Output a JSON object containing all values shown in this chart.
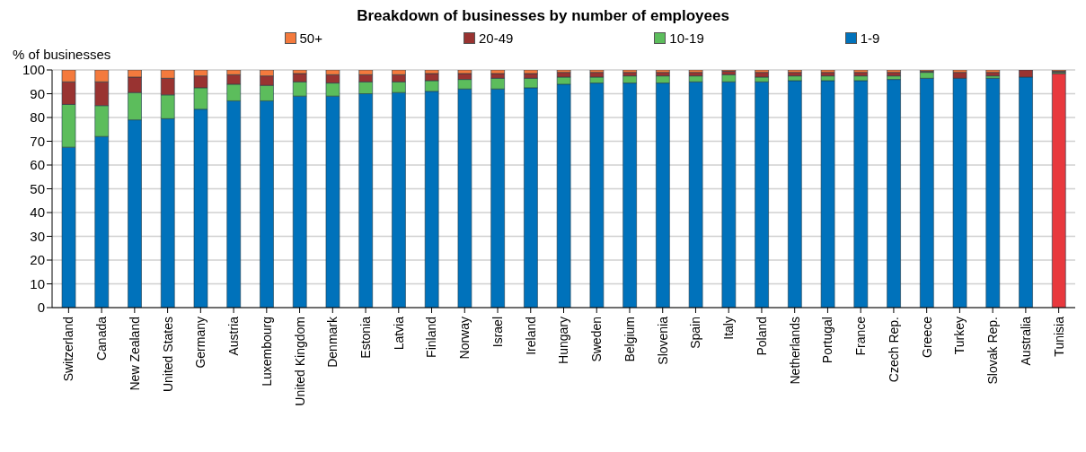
{
  "chart_data": {
    "type": "bar",
    "title": "Breakdown of businesses by number of employees",
    "ylabel": "% of businesses",
    "stacked": true,
    "grid": "y",
    "legend": "top",
    "categories": [
      "Switzerland",
      "Canada",
      "New Zealand",
      "United States",
      "Germany",
      "Austria",
      "Luxembourg",
      "United Kingdom",
      "Denmark",
      "Estonia",
      "Latvia",
      "Finland",
      "Norway",
      "Israel",
      "Ireland",
      "Hungary",
      "Sweden",
      "Belgium",
      "Slovenia",
      "Spain",
      "Italy",
      "Poland",
      "Netherlands",
      "Portugal",
      "France",
      "Czech Rep.",
      "Greece",
      "Turkey",
      "Slovak Rep.",
      "Australia",
      "Tunisia"
    ],
    "ylim": [
      0,
      100
    ],
    "yticks": [
      0,
      10,
      20,
      30,
      40,
      50,
      60,
      70,
      80,
      90,
      100
    ],
    "series": [
      {
        "name": "1-9",
        "color": "#0072bb",
        "colors": [
          "#0072bb",
          "#0072bb",
          "#0072bb",
          "#0072bb",
          "#0072bb",
          "#0072bb",
          "#0072bb",
          "#0072bb",
          "#0072bb",
          "#0072bb",
          "#0072bb",
          "#0072bb",
          "#0072bb",
          "#0072bb",
          "#0072bb",
          "#0072bb",
          "#0072bb",
          "#0072bb",
          "#0072bb",
          "#0072bb",
          "#0072bb",
          "#0072bb",
          "#0072bb",
          "#0072bb",
          "#0072bb",
          "#0072bb",
          "#0072bb",
          "#0072bb",
          "#0072bb",
          "#0072bb",
          "#e8383d"
        ],
        "values": [
          67.5,
          72,
          79,
          79.5,
          83.5,
          87,
          87,
          89,
          89,
          90,
          90.5,
          91,
          92,
          92,
          92.5,
          94,
          94.5,
          94.5,
          94.5,
          95,
          95,
          95,
          95.5,
          95.5,
          95.5,
          96,
          96.5,
          96.5,
          96.5,
          97,
          98.5
        ]
      },
      {
        "name": "10-19",
        "color": "#5cbd5c",
        "values": [
          18,
          13,
          11.5,
          10,
          9,
          7,
          6.5,
          6,
          5.5,
          5,
          4.5,
          4.5,
          4,
          4.5,
          4,
          3,
          2.5,
          3,
          3,
          2.5,
          3,
          2,
          2,
          2,
          2,
          1.5,
          2.5,
          0,
          1,
          0,
          0.5
        ]
      },
      {
        "name": "20-49",
        "color": "#993331",
        "values": [
          9.5,
          10,
          6.5,
          7,
          5,
          4,
          4,
          3.5,
          3.5,
          3,
          3,
          3,
          2.5,
          2,
          2,
          2,
          2,
          1.5,
          1.5,
          1.5,
          1.5,
          2,
          1.5,
          1.5,
          1.5,
          1.5,
          0.5,
          2.5,
          1.5,
          3,
          0.5
        ]
      },
      {
        "name": "50+",
        "color": "#f47a3d",
        "values": [
          5,
          5,
          3,
          3.5,
          2.5,
          2,
          2.5,
          1.5,
          2,
          2,
          2,
          1.5,
          1.5,
          1.5,
          1.5,
          1,
          1,
          1,
          1,
          1,
          0.5,
          1,
          1,
          1,
          1,
          1,
          0.5,
          1,
          1,
          0,
          0.5
        ]
      }
    ]
  }
}
